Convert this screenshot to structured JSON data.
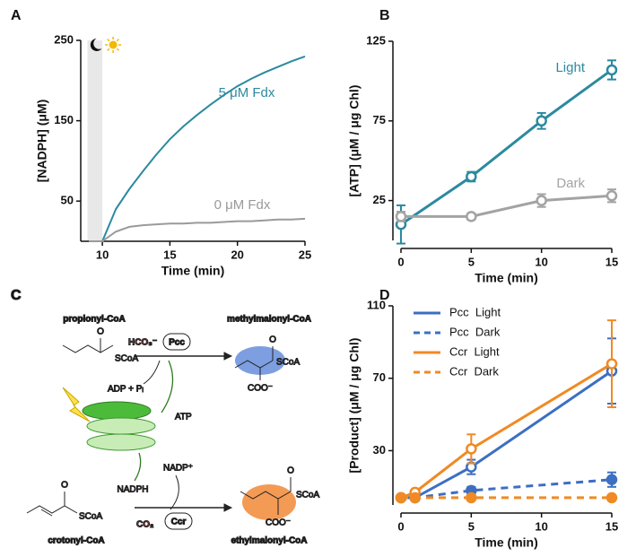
{
  "chart_data": [
    {
      "label": "A",
      "type": "line",
      "xlabel": "Time (min)",
      "ylabel": "[NADPH] (μM)",
      "xlim": [
        8.4,
        25
      ],
      "ylim": [
        0,
        250
      ],
      "xticks": [
        10,
        15,
        20,
        25
      ],
      "yticks": [
        50,
        150,
        250
      ],
      "shade": [
        8.9,
        10
      ],
      "x": [
        9,
        10,
        11,
        12,
        13,
        14,
        15,
        16,
        17,
        18,
        19,
        20,
        21,
        22,
        23,
        24,
        25
      ],
      "series": [
        {
          "name": "5 μM Fdx",
          "color": "#2b8a9f",
          "values": [
            0,
            0,
            40,
            65,
            87,
            108,
            127,
            143,
            157,
            170,
            182,
            193,
            202,
            210,
            217,
            224,
            230
          ]
        },
        {
          "name": "0 μM Fdx",
          "color": "#9a9a9a",
          "values": [
            0,
            0,
            12,
            18,
            20,
            21,
            22,
            22,
            23,
            23,
            24,
            25,
            25,
            26,
            27,
            27,
            28
          ]
        }
      ]
    },
    {
      "label": "B",
      "type": "line",
      "xlabel": "Time (min)",
      "ylabel": "[ATP] (μM / μg Chl)",
      "xlim": [
        0,
        15
      ],
      "ylim": [
        0,
        125
      ],
      "xticks": [
        0,
        5,
        10,
        15
      ],
      "yticks": [
        25,
        75,
        125
      ],
      "x": [
        0,
        5,
        10,
        15
      ],
      "series": [
        {
          "name": "Light",
          "color": "#2b8a9f",
          "marker": "open",
          "values": [
            10,
            40,
            75,
            107
          ],
          "errors": [
            12,
            3,
            5,
            6
          ]
        },
        {
          "name": "Dark",
          "color": "#a3a3a3",
          "marker": "open",
          "values": [
            15,
            15,
            25,
            28
          ],
          "errors": [
            3,
            2,
            4,
            4
          ]
        }
      ]
    },
    {
      "label": "D",
      "type": "line",
      "xlabel": "Time (min)",
      "ylabel": "[Product] (μM / μg Chl)",
      "xlim": [
        0,
        15
      ],
      "ylim": [
        0,
        110
      ],
      "xticks": [
        0,
        5,
        10,
        15
      ],
      "yticks": [
        30,
        70,
        110
      ],
      "legend": "upper left",
      "x": [
        0,
        1,
        5,
        15
      ],
      "series": [
        {
          "name": "Pcc  Light",
          "color": "#3c6fc2",
          "marker": "open",
          "values": [
            4,
            4,
            21,
            74
          ],
          "errors": [
            null,
            null,
            4,
            18
          ]
        },
        {
          "name": "Pcc  Dark",
          "color": "#3c6fc2",
          "marker": "filled",
          "dash": true,
          "values": [
            4,
            4,
            8,
            14
          ],
          "errors": [
            null,
            null,
            2,
            4
          ]
        },
        {
          "name": "Ccr  Light",
          "color": "#f08a24",
          "marker": "open",
          "values": [
            4,
            7,
            31,
            78
          ],
          "errors": [
            null,
            null,
            8,
            24
          ]
        },
        {
          "name": "Ccr  Dark",
          "color": "#f08a24",
          "marker": "filled",
          "dash": true,
          "values": [
            4,
            4,
            4,
            4
          ],
          "errors": [
            null,
            null,
            null,
            null
          ]
        }
      ]
    }
  ],
  "diagram": {
    "label": "C",
    "propionyl": "propionyl-CoA",
    "methylmalonyl": "methylmalonyl-CoA",
    "crotonyl": "crotonyl-CoA",
    "ethylmalonyl": "ethylmalonyl-CoA",
    "bicarbonate": "HCO₃⁻",
    "co2": "CO₂",
    "pcc": "Pcc",
    "ccr": "Ccr",
    "adp": "ADP + Pᵢ",
    "atp": "ATP",
    "nadp": "NADP⁺",
    "nadph": "NADPH",
    "scoa": [
      "SCoA",
      "SCoA",
      "SCoA",
      "SCoA"
    ],
    "carboxylate": [
      "COO⁻",
      "COO⁻"
    ],
    "oxygen": [
      "O",
      "O",
      "O",
      "O"
    ]
  }
}
